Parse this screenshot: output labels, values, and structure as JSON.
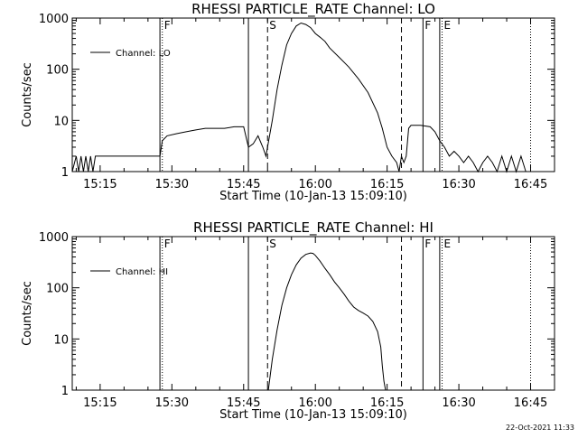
{
  "footer": "22-Oct-2021 11:33",
  "chart_data": [
    {
      "type": "line",
      "title": "RHESSI PARTICLE_RATE Channel: LO",
      "xlabel": "Start Time (10-Jan-13 15:09:10)",
      "ylabel": "Counts/sec",
      "yscale": "log",
      "ylim": [
        1,
        1000
      ],
      "xlim": [
        "15:09:10",
        "16:50:00"
      ],
      "x_ticks": [
        "15:15",
        "15:30",
        "15:45",
        "16:00",
        "16:15",
        "16:30",
        "16:45"
      ],
      "y_ticks": [
        "1",
        "10",
        "100",
        "1000"
      ],
      "legend": {
        "position": "top-left",
        "entries": [
          "Channel: LO"
        ]
      },
      "flags": [
        {
          "label": "F",
          "time": "15:28:00",
          "style": "dotted"
        },
        {
          "label": "S",
          "time": "15:50:00",
          "style": "dashed"
        },
        {
          "label": "F",
          "time": "16:22:30",
          "style": "solid"
        },
        {
          "label": "E",
          "time": "16:26:30",
          "style": "dotted"
        }
      ],
      "unlabeled_lines": [
        {
          "time": "15:27:30",
          "style": "solid"
        },
        {
          "time": "15:46:00",
          "style": "solid"
        },
        {
          "time": "16:18:00",
          "style": "dashed"
        },
        {
          "time": "16:26:00",
          "style": "solid"
        },
        {
          "time": "16:45:00",
          "style": "dotted"
        }
      ],
      "series": [
        {
          "name": "Channel: LO",
          "x": [
            "15:09:10",
            "15:10:00",
            "15:10:30",
            "15:11:00",
            "15:11:30",
            "15:12:00",
            "15:12:30",
            "15:13:00",
            "15:13:30",
            "15:14:00",
            "15:14:30",
            "15:15:00",
            "15:16:00",
            "15:18:00",
            "15:20:00",
            "15:22:00",
            "15:24:00",
            "15:26:00",
            "15:27:30",
            "15:28:00",
            "15:29:00",
            "15:31:00",
            "15:33:00",
            "15:35:00",
            "15:37:00",
            "15:39:00",
            "15:41:00",
            "15:43:00",
            "15:45:00",
            "15:46:00",
            "15:47:00",
            "15:48:00",
            "15:49:00",
            "15:49:40",
            "15:50:00",
            "15:51:00",
            "15:52:00",
            "15:53:00",
            "15:54:00",
            "15:55:00",
            "15:56:00",
            "15:57:00",
            "15:58:00",
            "15:59:00",
            "16:00:00",
            "16:01:00",
            "16:02:00",
            "16:03:00",
            "16:05:00",
            "16:07:00",
            "16:09:00",
            "16:11:00",
            "16:13:00",
            "16:14:00",
            "16:15:00",
            "16:16:00",
            "16:17:00",
            "16:17:30",
            "16:18:00",
            "16:18:30",
            "16:19:00",
            "16:19:30",
            "16:20:00",
            "16:22:00",
            "16:24:00",
            "16:25:00",
            "16:26:00",
            "16:27:00",
            "16:28:00",
            "16:29:00",
            "16:30:00",
            "16:31:00",
            "16:32:00",
            "16:33:00",
            "16:34:00",
            "16:35:00",
            "16:36:00",
            "16:37:00",
            "16:38:00",
            "16:39:00",
            "16:40:00",
            "16:41:00",
            "16:42:00",
            "16:43:00",
            "16:44:00"
          ],
          "y": [
            1,
            2,
            1,
            2,
            1,
            2,
            1,
            2,
            1,
            2,
            2,
            2,
            2,
            2,
            2,
            2,
            2,
            2,
            2,
            4,
            5,
            5.5,
            6,
            6.5,
            7,
            7,
            7,
            7.5,
            7.5,
            3,
            3.5,
            5,
            3,
            2,
            3,
            10,
            40,
            120,
            300,
            500,
            700,
            800,
            750,
            650,
            500,
            420,
            350,
            260,
            170,
            110,
            65,
            35,
            14,
            7,
            3,
            2,
            1.5,
            1,
            2,
            1.5,
            2,
            7,
            8,
            8,
            7.5,
            6,
            4,
            3,
            2,
            2.5,
            2,
            1.5,
            2,
            1.5,
            1,
            1.5,
            2,
            1.5,
            1,
            2,
            1,
            2,
            1,
            2,
            1
          ]
        }
      ]
    },
    {
      "type": "line",
      "title": "RHESSI PARTICLE_RATE Channel: HI",
      "xlabel": "Start Time (10-Jan-13 15:09:10)",
      "ylabel": "Counts/sec",
      "yscale": "log",
      "ylim": [
        1,
        1000
      ],
      "xlim": [
        "15:09:10",
        "16:50:00"
      ],
      "x_ticks": [
        "15:15",
        "15:30",
        "15:45",
        "16:00",
        "16:15",
        "16:30",
        "16:45"
      ],
      "y_ticks": [
        "1",
        "10",
        "100",
        "1000"
      ],
      "legend": {
        "position": "top-left",
        "entries": [
          "Channel: HI"
        ]
      },
      "flags": [
        {
          "label": "F",
          "time": "15:28:00",
          "style": "dotted"
        },
        {
          "label": "S",
          "time": "15:50:00",
          "style": "dashed"
        },
        {
          "label": "F",
          "time": "16:22:30",
          "style": "solid"
        },
        {
          "label": "E",
          "time": "16:26:30",
          "style": "dotted"
        }
      ],
      "unlabeled_lines": [
        {
          "time": "15:27:30",
          "style": "solid"
        },
        {
          "time": "15:46:00",
          "style": "solid"
        },
        {
          "time": "16:18:00",
          "style": "dashed"
        },
        {
          "time": "16:26:00",
          "style": "solid"
        },
        {
          "time": "16:45:00",
          "style": "dotted"
        }
      ],
      "series": [
        {
          "name": "Channel: HI",
          "x": [
            "15:50:10",
            "15:51:00",
            "15:52:00",
            "15:53:00",
            "15:54:00",
            "15:55:00",
            "15:56:00",
            "15:57:00",
            "15:58:00",
            "15:59:00",
            "15:59:30",
            "16:00:00",
            "16:01:00",
            "16:02:00",
            "16:03:00",
            "16:04:00",
            "16:05:00",
            "16:06:00",
            "16:07:00",
            "16:08:00",
            "16:09:00",
            "16:10:00",
            "16:11:00",
            "16:12:00",
            "16:13:00",
            "16:13:40",
            "16:14:00",
            "16:14:20",
            "16:14:40"
          ],
          "y": [
            1,
            4,
            15,
            45,
            100,
            180,
            280,
            380,
            450,
            480,
            470,
            430,
            330,
            240,
            180,
            130,
            100,
            75,
            55,
            42,
            36,
            32,
            28,
            22,
            14,
            7,
            3,
            1.5,
            1
          ]
        }
      ]
    }
  ]
}
